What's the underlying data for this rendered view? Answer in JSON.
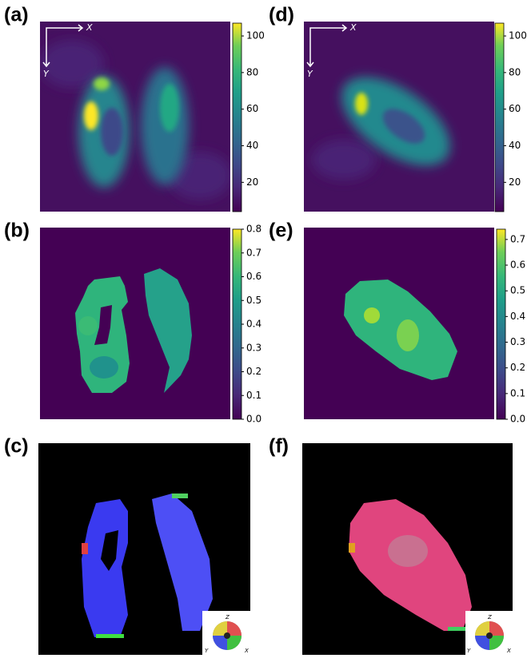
{
  "panels": [
    {
      "label": "(a)",
      "axis_labels": {
        "x": "X",
        "y": "Y"
      },
      "colorbar": {
        "range": [
          4,
          107
        ],
        "ticks": [
          20,
          40,
          60,
          80,
          100
        ]
      }
    },
    {
      "label": "(b)",
      "colorbar": {
        "range": [
          0,
          0.8
        ],
        "ticks": [
          {
            "value": 0,
            "label": "0.0"
          },
          0.1,
          0.2,
          0.3,
          0.4,
          0.5,
          0.6,
          0.7,
          0.8
        ]
      }
    },
    {
      "label": "(c)",
      "sphere_labels": {
        "z": "Z",
        "y": "Y",
        "x": "X"
      }
    },
    {
      "label": "(d)",
      "axis_labels": {
        "x": "X",
        "y": "Y"
      },
      "colorbar": {
        "range": [
          4,
          107
        ],
        "ticks": [
          20,
          40,
          60,
          80,
          100
        ]
      }
    },
    {
      "label": "(e)",
      "colorbar": {
        "range": [
          0,
          0.74
        ],
        "ticks": [
          {
            "value": 0,
            "label": "0.0"
          },
          0.1,
          0.2,
          0.3,
          0.4,
          0.5,
          0.6,
          0.7
        ]
      }
    },
    {
      "label": "(f)",
      "sphere_labels": {
        "z": "Z",
        "y": "Y",
        "x": "X"
      }
    }
  ]
}
